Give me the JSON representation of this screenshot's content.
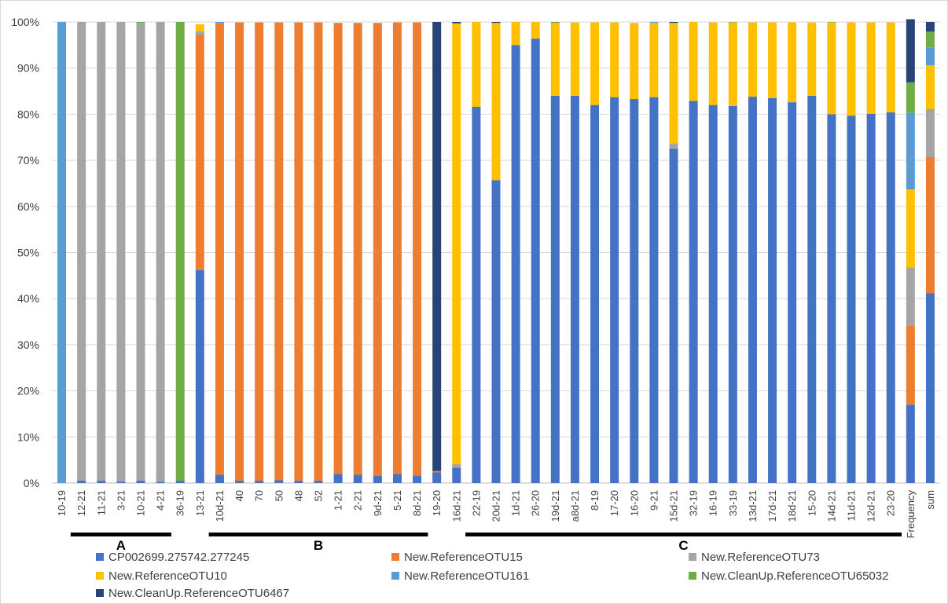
{
  "chart_data": {
    "type": "bar",
    "stacked": true,
    "percent": true,
    "ylim": [
      0,
      100
    ],
    "y_ticks": [
      "0%",
      "10%",
      "20%",
      "30%",
      "40%",
      "50%",
      "60%",
      "70%",
      "80%",
      "90%",
      "100%"
    ],
    "grid": true,
    "legend_position": "bottom",
    "categories": [
      "10-19",
      "12-21",
      "11-21",
      "3-21",
      "10-21",
      "4-21",
      "36-19",
      "13-21",
      "10d-21",
      "40",
      "70",
      "50",
      "48",
      "52",
      "1-21",
      "2-21",
      "9d-21",
      "5-21",
      "8d-21",
      "19-20",
      "16d-21",
      "22-19",
      "20d-21",
      "1d-21",
      "26-20",
      "19d-21",
      "a8d-21",
      "8-19",
      "17-20",
      "16-20",
      "9-21",
      "15d-21",
      "32-19",
      "16-19",
      "33-19",
      "13d-21",
      "17d-21",
      "18d-21",
      "15-20",
      "14d-21",
      "11d-21",
      "12d-21",
      "23-20",
      "Frequency",
      "sum"
    ],
    "groups": [
      {
        "label": "A",
        "from": "12-21",
        "to": "4-21"
      },
      {
        "label": "B",
        "from": "10d-21",
        "to": "8d-21"
      },
      {
        "label": "C",
        "from": "22-19",
        "to": "23-20"
      }
    ],
    "series": [
      {
        "name": "CP002699.275742.277245",
        "color": "#4472C4",
        "values": [
          0,
          0.5,
          0.5,
          0.3,
          0.5,
          0.3,
          0.5,
          46.2,
          1.8,
          0.5,
          0.5,
          0.6,
          0.5,
          0.5,
          2,
          1.8,
          1.6,
          2,
          1.6,
          2.3,
          3.3,
          81.6,
          65.7,
          95,
          96.4,
          84,
          84,
          82,
          83.7,
          83.3,
          83.7,
          72.5,
          82.9,
          82,
          81.8,
          83.8,
          83.5,
          82.6,
          84,
          80,
          79.7,
          80.1,
          80.4,
          17,
          41.2
        ]
      },
      {
        "name": "New.ReferenceOTU15",
        "color": "#ED7D31",
        "values": [
          0,
          0,
          0,
          0,
          0,
          0,
          0,
          51,
          97.9,
          99.4,
          99.4,
          99.3,
          99.4,
          99.4,
          97.8,
          98,
          98.2,
          97.9,
          98.3,
          0.3,
          0.2,
          0,
          0,
          0,
          0,
          0,
          0,
          0,
          0,
          0,
          0,
          0,
          0,
          0,
          0,
          0,
          0,
          0,
          0,
          0,
          0,
          0,
          0,
          17.2,
          29.5
        ]
      },
      {
        "name": "New.ReferenceOTU73",
        "color": "#A5A5A5",
        "values": [
          0,
          99.5,
          99.5,
          99.7,
          99.3,
          99.7,
          0,
          0.8,
          0,
          0,
          0,
          0,
          0,
          0,
          0,
          0,
          0,
          0,
          0,
          0,
          0.6,
          0,
          0,
          0,
          0,
          0,
          0,
          0,
          0,
          0,
          0,
          1.2,
          0,
          0,
          0,
          0,
          0,
          0,
          0,
          0,
          0,
          0,
          0,
          12.6,
          10.4
        ]
      },
      {
        "name": "New.ReferenceOTU10",
        "color": "#FFC000",
        "values": [
          0,
          0,
          0,
          0,
          0,
          0,
          0,
          1.5,
          0,
          0,
          0,
          0,
          0,
          0,
          0,
          0,
          0,
          0,
          0,
          0,
          95.6,
          18.4,
          34.1,
          5,
          3.6,
          15.8,
          15.9,
          17.9,
          16.2,
          16.5,
          16.1,
          26.1,
          17.1,
          17.9,
          18.1,
          16.1,
          16.4,
          17.3,
          15.9,
          19.9,
          20.2,
          19.8,
          19.5,
          16.9,
          9.5
        ]
      },
      {
        "name": "New.ReferenceOTU161",
        "color": "#5B9BD5",
        "values": [
          100,
          0,
          0,
          0,
          0,
          0,
          0,
          0,
          0.3,
          0,
          0,
          0,
          0,
          0,
          0,
          0,
          0,
          0,
          0,
          0,
          0,
          0,
          0,
          0,
          0,
          0,
          0,
          0,
          0,
          0,
          0.2,
          0,
          0,
          0,
          0,
          0,
          0,
          0,
          0,
          0,
          0,
          0,
          0,
          16.6,
          3.9
        ]
      },
      {
        "name": "New.CleanUp.ReferenceOTU65032",
        "color": "#70AD47",
        "values": [
          0,
          0,
          0,
          0,
          0.2,
          0,
          99.5,
          0,
          0,
          0,
          0,
          0,
          0,
          0,
          0,
          0,
          0,
          0,
          0,
          0,
          0,
          0,
          0,
          0,
          0,
          0.2,
          0,
          0,
          0,
          0,
          0,
          0,
          0,
          0,
          0.1,
          0,
          0,
          0,
          0,
          0.1,
          0,
          0,
          0,
          6.6,
          3.4
        ]
      },
      {
        "name": "New.CleanUp.ReferenceOTU6467",
        "color": "#264478",
        "values": [
          0,
          0,
          0,
          0,
          0,
          0,
          0,
          0,
          0,
          0,
          0,
          0,
          0,
          0,
          0,
          0,
          0,
          0,
          0,
          97.4,
          0.3,
          0,
          0.2,
          0,
          0,
          0,
          0,
          0,
          0,
          0,
          0,
          0.2,
          0,
          0,
          0,
          0,
          0,
          0,
          0,
          0,
          0,
          0,
          0,
          13.7,
          2.1
        ]
      }
    ]
  }
}
